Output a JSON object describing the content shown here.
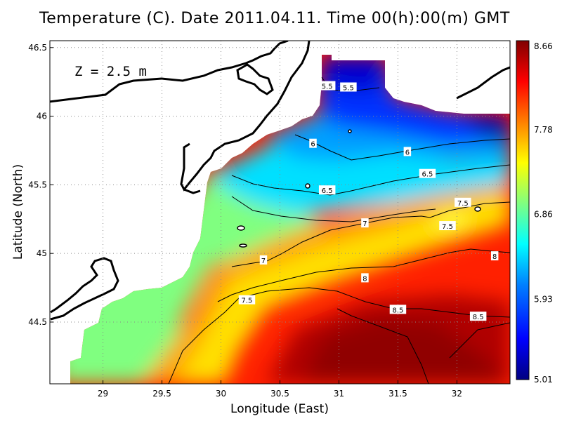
{
  "title": "Temperature (C). Date 2011.04.11. Time 00(h):00(m) GMT",
  "depth_label": "Z = 2.5 m",
  "chart_data": {
    "type": "heatmap",
    "title": "Temperature (C). Date 2011.04.11. Time 00(h):00(m) GMT",
    "xlabel": "Longitude (East)",
    "ylabel": "Latitude (North)",
    "xlim": [
      28.55,
      32.45
    ],
    "ylim": [
      44.05,
      46.55
    ],
    "x_ticks": [
      {
        "value": 29,
        "label": "29"
      },
      {
        "value": 29.5,
        "label": "29.5"
      },
      {
        "value": 30,
        "label": "30"
      },
      {
        "value": 30.5,
        "label": "30.5"
      },
      {
        "value": 31,
        "label": "31"
      },
      {
        "value": 31.5,
        "label": "31.5"
      },
      {
        "value": 32,
        "label": "32"
      }
    ],
    "y_ticks": [
      {
        "value": 44.5,
        "label": "44.5"
      },
      {
        "value": 45,
        "label": "45"
      },
      {
        "value": 45.5,
        "label": "45.5"
      },
      {
        "value": 46,
        "label": "46"
      },
      {
        "value": 46.5,
        "label": "46.5"
      }
    ],
    "grid": true,
    "colorbar": {
      "min": 5.01,
      "max": 8.66,
      "tick_labels": [
        "8.66",
        "7.78",
        "6.86",
        "5.93",
        "5.01"
      ],
      "colors": [
        "#000080",
        "#0000ff",
        "#0080ff",
        "#00ffff",
        "#80ff80",
        "#ffff00",
        "#ff8000",
        "#ff0000",
        "#800000"
      ]
    },
    "contour_labels": [
      {
        "text": "5.5",
        "lon": 30.9,
        "lat": 46.22
      },
      {
        "text": "5.5",
        "lon": 31.08,
        "lat": 46.21
      },
      {
        "text": "6",
        "lon": 30.78,
        "lat": 45.8
      },
      {
        "text": "6",
        "lon": 31.58,
        "lat": 45.74
      },
      {
        "text": "6.5",
        "lon": 31.75,
        "lat": 45.58
      },
      {
        "text": "6.5",
        "lon": 30.9,
        "lat": 45.46
      },
      {
        "text": "7.5",
        "lon": 32.05,
        "lat": 45.37
      },
      {
        "text": "7.5",
        "lon": 31.92,
        "lat": 45.2
      },
      {
        "text": "7",
        "lon": 31.22,
        "lat": 45.22
      },
      {
        "text": "7",
        "lon": 30.36,
        "lat": 44.95
      },
      {
        "text": "8",
        "lon": 32.32,
        "lat": 44.98
      },
      {
        "text": "8",
        "lon": 31.22,
        "lat": 44.82
      },
      {
        "text": "7.5",
        "lon": 30.22,
        "lat": 44.66
      },
      {
        "text": "8.5",
        "lon": 31.5,
        "lat": 44.59
      },
      {
        "text": "8.5",
        "lon": 32.18,
        "lat": 44.54
      }
    ]
  }
}
